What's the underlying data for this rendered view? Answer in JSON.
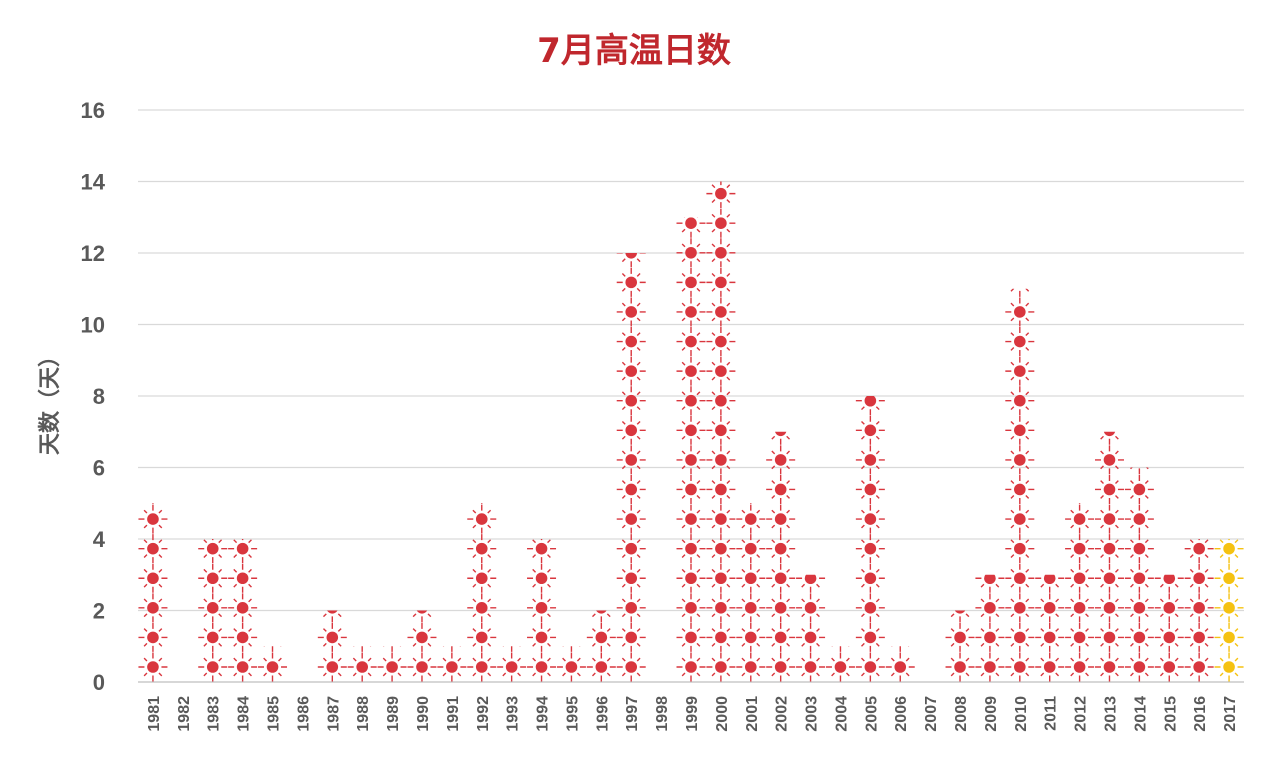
{
  "chart_data": {
    "type": "bar",
    "title": "7月高温日数",
    "ylabel": "天数（天）",
    "xlabel": "",
    "ylim": [
      0,
      16
    ],
    "yticks": [
      0,
      2,
      4,
      6,
      8,
      10,
      12,
      14,
      16
    ],
    "grid": true,
    "categories": [
      "1981",
      "1982",
      "1983",
      "1984",
      "1985",
      "1986",
      "1987",
      "1988",
      "1989",
      "1990",
      "1991",
      "1992",
      "1993",
      "1994",
      "1995",
      "1996",
      "1997",
      "1998",
      "1999",
      "2000",
      "2001",
      "2002",
      "2003",
      "2004",
      "2005",
      "2006",
      "2007",
      "2008",
      "2009",
      "2010",
      "2011",
      "2012",
      "2013",
      "2014",
      "2015",
      "2016",
      "2017"
    ],
    "values": [
      5,
      0,
      4,
      4,
      1,
      0,
      2,
      1,
      1,
      2,
      1,
      5,
      1,
      4,
      1,
      2,
      12,
      0,
      13,
      14,
      5,
      7,
      3,
      1,
      8,
      1,
      0,
      2,
      3,
      11,
      3,
      5,
      7,
      6,
      3,
      4,
      4
    ],
    "colors": {
      "historical": "#d9363e",
      "current": "#f5c211",
      "title": "#c0272d",
      "axis_text": "#595959",
      "grid": "#d9d9d9"
    },
    "highlight_category": "2017",
    "marker_icon": "sun-icon"
  }
}
